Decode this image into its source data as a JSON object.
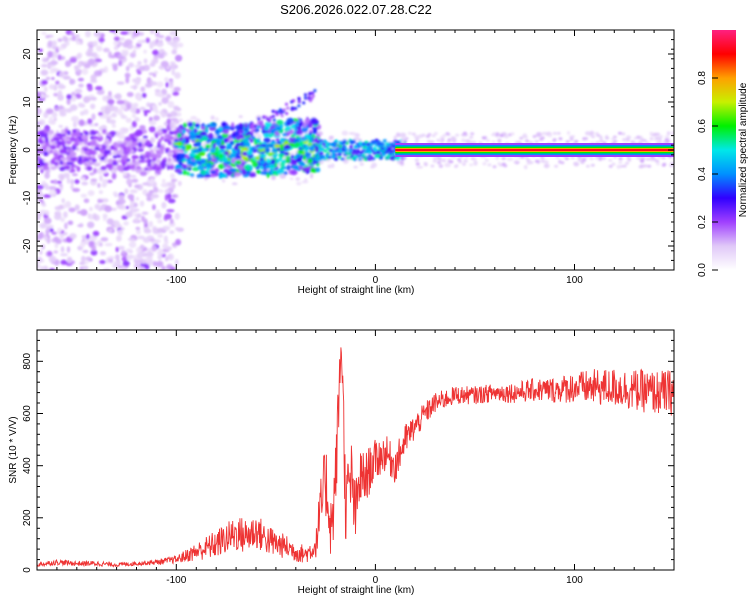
{
  "title": "S206.2026.022.07.28.C22",
  "chart_data": [
    {
      "type": "heatmap",
      "name": "spectrogram",
      "xlabel": "Height of straight line (km)",
      "ylabel": "Frequency (Hz)",
      "xlim": [
        -170,
        150
      ],
      "ylim": [
        -25,
        25
      ],
      "x_ticks": [
        -100,
        0,
        100
      ],
      "x_tick_labels": [
        "-100",
        "0",
        "100"
      ],
      "y_ticks": [
        -20,
        -10,
        0,
        10,
        20
      ],
      "y_tick_labels": [
        "-20",
        "-10",
        "0",
        "10",
        "20"
      ],
      "colorbar": {
        "label": "Normalized spectral amplitude",
        "range": [
          0,
          1
        ],
        "ticks": [
          0.0,
          0.2,
          0.4,
          0.6,
          0.8
        ],
        "tick_labels": [
          "0.0",
          "0.2",
          "0.4",
          "0.6",
          "0.8"
        ],
        "colors": [
          "#ffffff",
          "#e0c8f8",
          "#a040ff",
          "#3000ff",
          "#0090ff",
          "#00e8e8",
          "#00f000",
          "#c8f000",
          "#ffa000",
          "#ff0000",
          "#ff2080"
        ]
      },
      "features": [
        {
          "region": "x -170 to -100",
          "description": "noise across all frequencies"
        },
        {
          "region": "x -100 to -30",
          "description": "broadband signal near 0 Hz, spreading to about +/-5 Hz with a branch rising to about 12 Hz"
        },
        {
          "region": "x -30 to 150",
          "description": "narrow line at 0 Hz, amplitude about 0.9"
        }
      ]
    },
    {
      "type": "line",
      "name": "snr",
      "xlabel": "Height of straight line (km)",
      "ylabel": "SNR (10 * V/V)",
      "xlim": [
        -170,
        150
      ],
      "ylim": [
        0,
        920
      ],
      "x_ticks": [
        -100,
        0,
        100
      ],
      "x_tick_labels": [
        "-100",
        "0",
        "100"
      ],
      "y_ticks": [
        0,
        200,
        400,
        600,
        800
      ],
      "y_tick_labels": [
        "0",
        "200",
        "400",
        "600",
        "800"
      ],
      "color": "#ee3333",
      "x": [
        -170,
        -160,
        -150,
        -140,
        -130,
        -120,
        -110,
        -100,
        -95,
        -90,
        -85,
        -80,
        -75,
        -70,
        -65,
        -60,
        -55,
        -50,
        -45,
        -40,
        -35,
        -30,
        -28,
        -25,
        -22,
        -20,
        -17,
        -15,
        -12,
        -10,
        -8,
        -5,
        -2,
        0,
        5,
        10,
        15,
        20,
        25,
        30,
        40,
        50,
        60,
        70,
        80,
        90,
        100,
        110,
        120,
        130,
        140,
        150
      ],
      "values": [
        20,
        30,
        25,
        25,
        20,
        25,
        30,
        40,
        55,
        70,
        85,
        100,
        120,
        140,
        130,
        150,
        120,
        100,
        90,
        70,
        60,
        90,
        200,
        350,
        150,
        350,
        900,
        250,
        350,
        200,
        350,
        350,
        400,
        420,
        450,
        400,
        500,
        550,
        600,
        640,
        670,
        670,
        680,
        680,
        690,
        690,
        700,
        700,
        700,
        690,
        680,
        680
      ],
      "noise_amplitude": [
        8,
        10,
        10,
        10,
        8,
        8,
        10,
        15,
        25,
        35,
        45,
        55,
        60,
        70,
        70,
        70,
        60,
        55,
        45,
        40,
        35,
        45,
        120,
        150,
        130,
        150,
        120,
        150,
        150,
        130,
        120,
        100,
        90,
        80,
        70,
        70,
        60,
        50,
        45,
        40,
        35,
        35,
        35,
        40,
        45,
        50,
        60,
        70,
        75,
        80,
        85,
        90
      ]
    }
  ]
}
